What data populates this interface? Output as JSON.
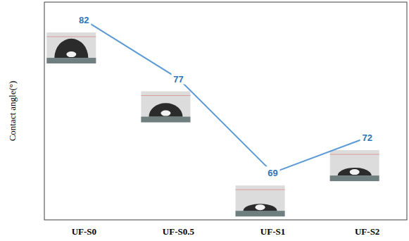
{
  "chart_data": {
    "type": "line",
    "y_label": "Contact angle(°)",
    "categories": [
      "UF-S0",
      "UF-S0.5",
      "UF-S1",
      "UF-S2"
    ],
    "values": [
      82,
      77,
      69,
      72
    ],
    "color": "#5b9bd5",
    "ylim": [
      65,
      83.5
    ],
    "yticks": [],
    "grid": false,
    "tick_labels": "x",
    "data_labels": true,
    "marker": "none",
    "line_style": "solid"
  }
}
